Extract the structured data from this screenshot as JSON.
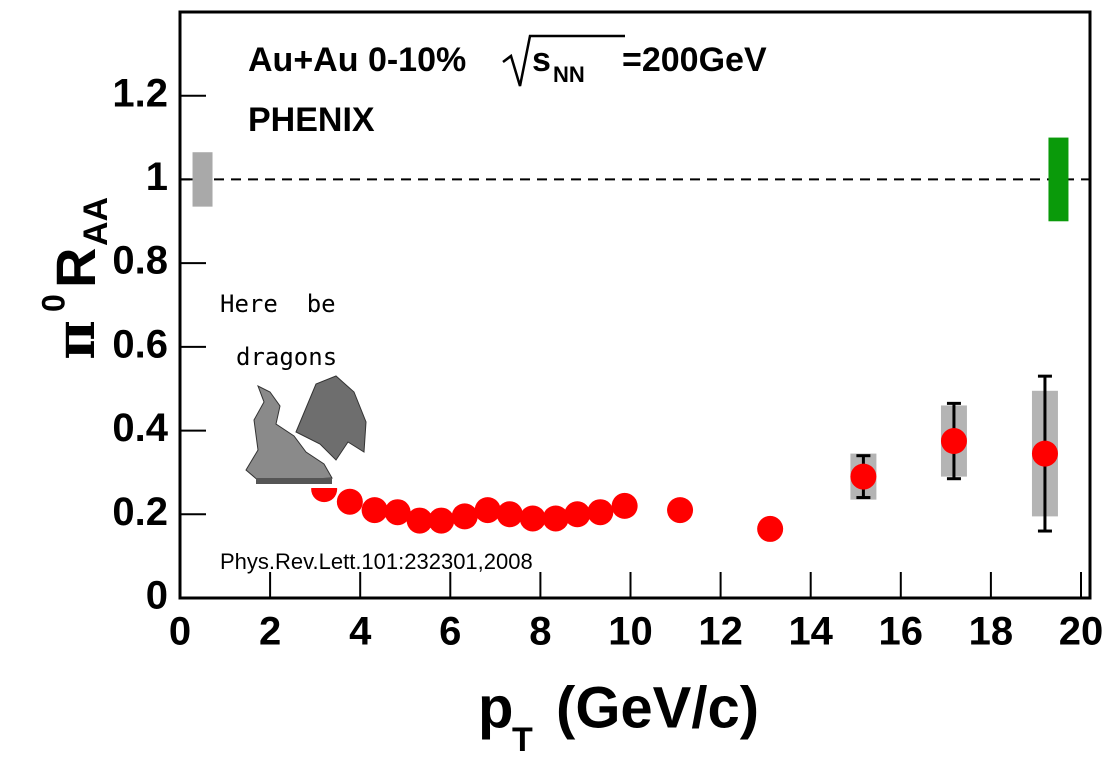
{
  "chart_data": {
    "type": "scatter",
    "annotation": {
      "prefix": "Au+Au 0-10%",
      "root": "s",
      "root_sub": "NN",
      "suffix": "=200GeV"
    },
    "experiment": "PHENIX",
    "reference": "Phys.Rev.Lett.101:232301,2008",
    "note": [
      "Here  be",
      "dragons"
    ],
    "y_label": {
      "symbol": "π",
      "sup": "0",
      "main": "R",
      "sub": "AA"
    },
    "x_label": {
      "main": "p",
      "sub": "T",
      "unit": "(GeV/c)"
    },
    "xlim": [
      0,
      20.2
    ],
    "ylim": [
      0,
      1.4
    ],
    "xticks": [
      0,
      2,
      4,
      6,
      8,
      10,
      12,
      14,
      16,
      18,
      20
    ],
    "yticks": [
      0,
      0.2,
      0.4,
      0.6,
      0.8,
      1,
      1.2
    ],
    "reference_line": 1,
    "normalization_boxes": [
      {
        "x": 0.5,
        "low": 0.935,
        "high": 1.065,
        "color": "#a9a9a9"
      },
      {
        "x": 19.5,
        "low": 0.9,
        "high": 1.1,
        "color": "#0a9a0a"
      }
    ],
    "series": [
      {
        "color": "#ff0000",
        "x": [
          3.2,
          3.77,
          4.32,
          4.83,
          5.32,
          5.8,
          6.32,
          6.83,
          7.32,
          7.83,
          8.34,
          8.82,
          9.33,
          9.87,
          11.1,
          13.1,
          15.17,
          17.18,
          19.2
        ],
        "values": [
          0.26,
          0.23,
          0.21,
          0.205,
          0.185,
          0.185,
          0.195,
          0.21,
          0.2,
          0.19,
          0.19,
          0.2,
          0.205,
          0.22,
          0.21,
          0.165,
          0.29,
          0.375,
          0.345
        ],
        "errors": [
          null,
          null,
          null,
          null,
          null,
          null,
          null,
          null,
          null,
          null,
          null,
          null,
          null,
          null,
          null,
          null,
          0.05,
          0.09,
          0.185
        ],
        "sys_errors": [
          null,
          null,
          null,
          null,
          null,
          null,
          null,
          null,
          null,
          null,
          null,
          null,
          null,
          null,
          null,
          null,
          0.055,
          0.085,
          0.15
        ],
        "sys_color": "#b4b4b4"
      }
    ]
  }
}
